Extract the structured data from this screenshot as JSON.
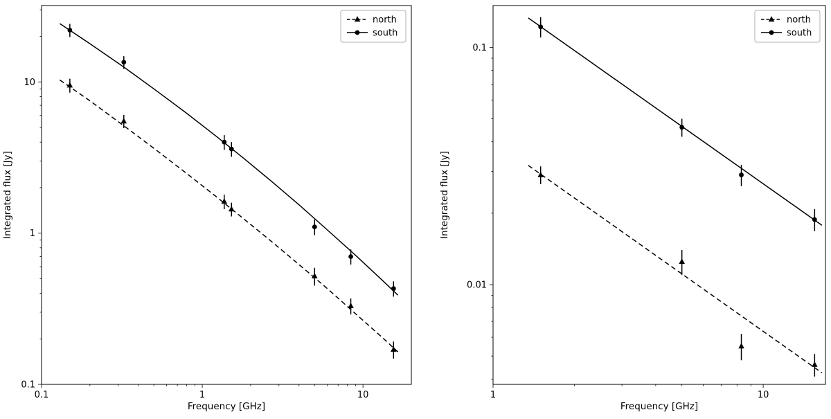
{
  "figure": {
    "background": "#ffffff",
    "line_color": "#000000",
    "legend_border_color": "#b0b0b0"
  },
  "chart_data": [
    {
      "type": "line",
      "title": "",
      "xlabel": "Frequency [GHz]",
      "ylabel": "Integrated flux [Jy]",
      "xscale": "log",
      "yscale": "log",
      "xlim": [
        0.1,
        20
      ],
      "ylim": [
        0.1,
        32
      ],
      "grid": false,
      "xticks": {
        "values": [
          0.1,
          1,
          10
        ],
        "labels": [
          "0.1",
          "1",
          "10"
        ]
      },
      "yticks": {
        "values": [
          0.1,
          1,
          10
        ],
        "labels": [
          "0.1",
          "1",
          "10"
        ]
      },
      "legend": {
        "position": "upper right",
        "entries": [
          "north",
          "south"
        ]
      },
      "series": [
        {
          "name": "north",
          "marker": "triangle",
          "linestyle": "dashed",
          "color": "#000000",
          "x": [
            0.15,
            0.325,
            1.37,
            1.52,
            5.0,
            8.4,
            15.5
          ],
          "y": [
            9.5,
            5.5,
            1.62,
            1.44,
            0.52,
            0.33,
            0.17
          ],
          "yerr": [
            1.0,
            0.55,
            0.18,
            0.15,
            0.07,
            0.04,
            0.022
          ],
          "fit_x": [
            0.13,
            0.2,
            0.33,
            0.5,
            0.8,
            1.2,
            1.8,
            2.7,
            4,
            6,
            9,
            13,
            16.5
          ],
          "fit_y": [
            10.3,
            7.5,
            5.07,
            3.64,
            2.48,
            1.77,
            1.25,
            0.88,
            0.62,
            0.43,
            0.293,
            0.207,
            0.164
          ]
        },
        {
          "name": "south",
          "marker": "circle",
          "linestyle": "solid",
          "color": "#000000",
          "x": [
            0.15,
            0.325,
            1.37,
            1.52,
            5.0,
            8.4,
            15.5
          ],
          "y": [
            22.0,
            13.5,
            4.0,
            3.6,
            1.1,
            0.7,
            0.43
          ],
          "yerr": [
            2.2,
            1.3,
            0.45,
            0.4,
            0.13,
            0.08,
            0.05
          ],
          "fit_x": [
            0.13,
            0.2,
            0.33,
            0.5,
            0.8,
            1.2,
            1.8,
            2.7,
            4,
            6,
            9,
            13,
            16.5
          ],
          "fit_y": [
            24.3,
            17.9,
            12.4,
            9.0,
            6.2,
            4.44,
            3.14,
            2.2,
            1.54,
            1.05,
            0.713,
            0.495,
            0.389
          ]
        }
      ]
    },
    {
      "type": "line",
      "title": "",
      "xlabel": "Frequency [GHz]",
      "ylabel": "Integrated flux [Jy]",
      "xscale": "log",
      "yscale": "log",
      "xlim": [
        1,
        17
      ],
      "ylim": [
        0.0038,
        0.15
      ],
      "grid": false,
      "xticks": {
        "values": [
          1,
          10
        ],
        "labels": [
          "1",
          "10"
        ]
      },
      "yticks": {
        "values": [
          0.01,
          0.1
        ],
        "labels": [
          "0.01",
          "0.1"
        ]
      },
      "legend": {
        "position": "upper right",
        "entries": [
          "north",
          "south"
        ]
      },
      "series": [
        {
          "name": "north",
          "marker": "triangle",
          "linestyle": "dashed",
          "color": "#000000",
          "x": [
            1.5,
            5.0,
            8.3,
            15.5
          ],
          "y": [
            0.029,
            0.0125,
            0.0055,
            0.0046
          ],
          "yerr": [
            0.0025,
            0.0015,
            0.0007,
            0.0005
          ],
          "fit_x": [
            1.35,
            16.5
          ],
          "fit_y": [
            0.0318,
            0.00425
          ]
        },
        {
          "name": "south",
          "marker": "circle",
          "linestyle": "solid",
          "color": "#000000",
          "x": [
            1.5,
            5.0,
            8.3,
            15.5
          ],
          "y": [
            0.122,
            0.046,
            0.029,
            0.0188
          ],
          "yerr": [
            0.012,
            0.004,
            0.003,
            0.002
          ],
          "fit_x": [
            1.35,
            16.5
          ],
          "fit_y": [
            0.133,
            0.0178
          ]
        }
      ]
    }
  ]
}
